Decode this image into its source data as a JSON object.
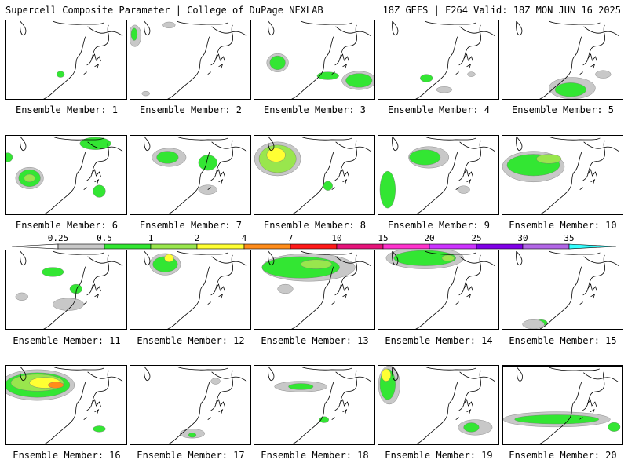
{
  "header": {
    "title_left": "Supercell Composite Parameter | College of DuPage NEXLAB",
    "title_right": "18Z GEFS | F264 Valid: 18Z MON JUN 16 2025"
  },
  "colorbar": {
    "ticks": [
      "0.25",
      "0.5",
      "1",
      "2",
      "4",
      "7",
      "10",
      "15",
      "20",
      "25",
      "30",
      "35"
    ],
    "colors": [
      "#ffffff",
      "#c8c8c8",
      "#33e633",
      "#99e64d",
      "#ffff33",
      "#ff8c1a",
      "#ff1a1a",
      "#e6147a",
      "#ff33cc",
      "#cc33ff",
      "#8000e6",
      "#b266e6",
      "#33ffff"
    ]
  },
  "panels": [
    {
      "label": "Ensemble Member: 1"
    },
    {
      "label": "Ensemble Member: 2"
    },
    {
      "label": "Ensemble Member: 3"
    },
    {
      "label": "Ensemble Member: 4"
    },
    {
      "label": "Ensemble Member: 5"
    },
    {
      "label": "Ensemble Member: 6"
    },
    {
      "label": "Ensemble Member: 7"
    },
    {
      "label": "Ensemble Member: 8"
    },
    {
      "label": "Ensemble Member: 9"
    },
    {
      "label": "Ensemble Member: 10"
    },
    {
      "label": "Ensemble Member: 11"
    },
    {
      "label": "Ensemble Member: 12"
    },
    {
      "label": "Ensemble Member: 13"
    },
    {
      "label": "Ensemble Member: 14"
    },
    {
      "label": "Ensemble Member: 15"
    },
    {
      "label": "Ensemble Member: 16"
    },
    {
      "label": "Ensemble Member: 17"
    },
    {
      "label": "Ensemble Member: 18"
    },
    {
      "label": "Ensemble Member: 19"
    },
    {
      "label": "Ensemble Member: 20",
      "selected": true
    }
  ]
}
